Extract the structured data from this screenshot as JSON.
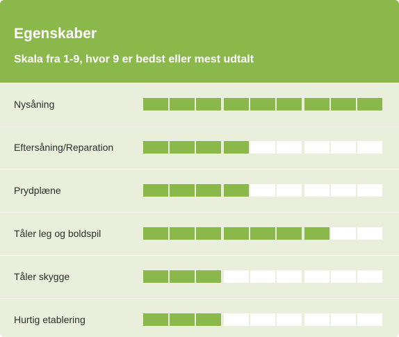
{
  "header": {
    "title": "Egenskaber",
    "subtitle": "Skala fra 1-9, hvor 9 er bedst eller mest udtalt"
  },
  "scale_max": 9,
  "colors": {
    "accent": "#8ab84a",
    "background": "#eaefdb",
    "empty_segment": "#ffffff",
    "text": "#2e2e2e"
  },
  "properties": [
    {
      "label": "Nysåning",
      "rating": 9
    },
    {
      "label": "Eftersåning/Reparation",
      "rating": 4
    },
    {
      "label": "Prydplæne",
      "rating": 4
    },
    {
      "label": "Tåler leg og boldspil",
      "rating": 7
    },
    {
      "label": "Tåler skygge",
      "rating": 3
    },
    {
      "label": "Hurtig etablering",
      "rating": 3
    }
  ]
}
